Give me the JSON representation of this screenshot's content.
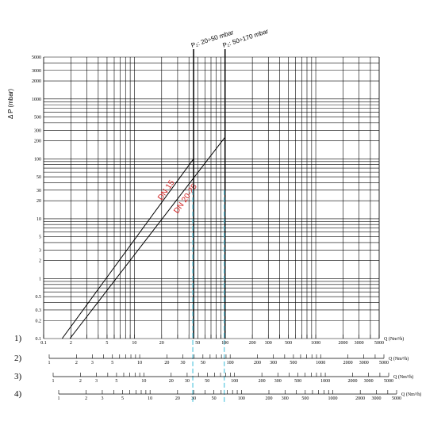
{
  "chart_data": {
    "type": "line",
    "ylabel": "Δ P (mbar)",
    "y_scale": "log",
    "ylim": [
      0.1,
      5000
    ],
    "y_ticks": [
      "0.1",
      "0.2",
      "0.3",
      "0.5",
      "1",
      "2",
      "3",
      "5",
      "10",
      "20",
      "30",
      "50",
      "100",
      "200",
      "300",
      "500",
      "1000",
      "2000",
      "3000",
      "5000"
    ],
    "grid": true,
    "series": [
      {
        "name": "DN 15",
        "x": [
          1.6,
          45
        ],
        "y": [
          0.1,
          100
        ],
        "color": "#000000"
      },
      {
        "name": "DN 20-25",
        "x": [
          1.95,
          100
        ],
        "y": [
          0.1,
          230
        ],
        "color": "#000000"
      }
    ],
    "vertical_markers": [
      {
        "label": "P₂: 20÷50 mbar",
        "x": 45
      },
      {
        "label": "P₂: 50÷170 mbar",
        "x": 100
      }
    ],
    "cyan_markers": [
      45,
      100
    ],
    "scales": [
      {
        "number": "1)",
        "label": "Q (Nm³/h)",
        "ticks": [
          "0.1",
          "2",
          "5",
          "10",
          "20",
          "50",
          "100",
          "200",
          "300",
          "500",
          "1000",
          "2000",
          "3000",
          "5000"
        ],
        "min": 1,
        "max": 5000
      },
      {
        "number": "2)",
        "label": "Q (Nm³/h)",
        "ticks": [
          "1",
          "2",
          "3",
          "5",
          "10",
          "20",
          "30",
          "50",
          "100",
          "200",
          "300",
          "500",
          "1000",
          "2000",
          "3000",
          "5000"
        ],
        "min": 1,
        "max": 5000
      },
      {
        "number": "3)",
        "label": "Q (Nm³/h)",
        "ticks": [
          "1",
          "2",
          "3",
          "5",
          "10",
          "20",
          "30",
          "50",
          "100",
          "200",
          "300",
          "500",
          "1000",
          "2000",
          "3000",
          "5000"
        ],
        "min": 1,
        "max": 5000
      },
      {
        "number": "4)",
        "label": "Q (Nm³/h)",
        "ticks": [
          "1",
          "2",
          "3",
          "5",
          "10",
          "20",
          "30",
          "50",
          "100",
          "200",
          "300",
          "500",
          "1000",
          "2000",
          "3000",
          "5000"
        ],
        "min": 1,
        "max": 5000
      }
    ]
  }
}
